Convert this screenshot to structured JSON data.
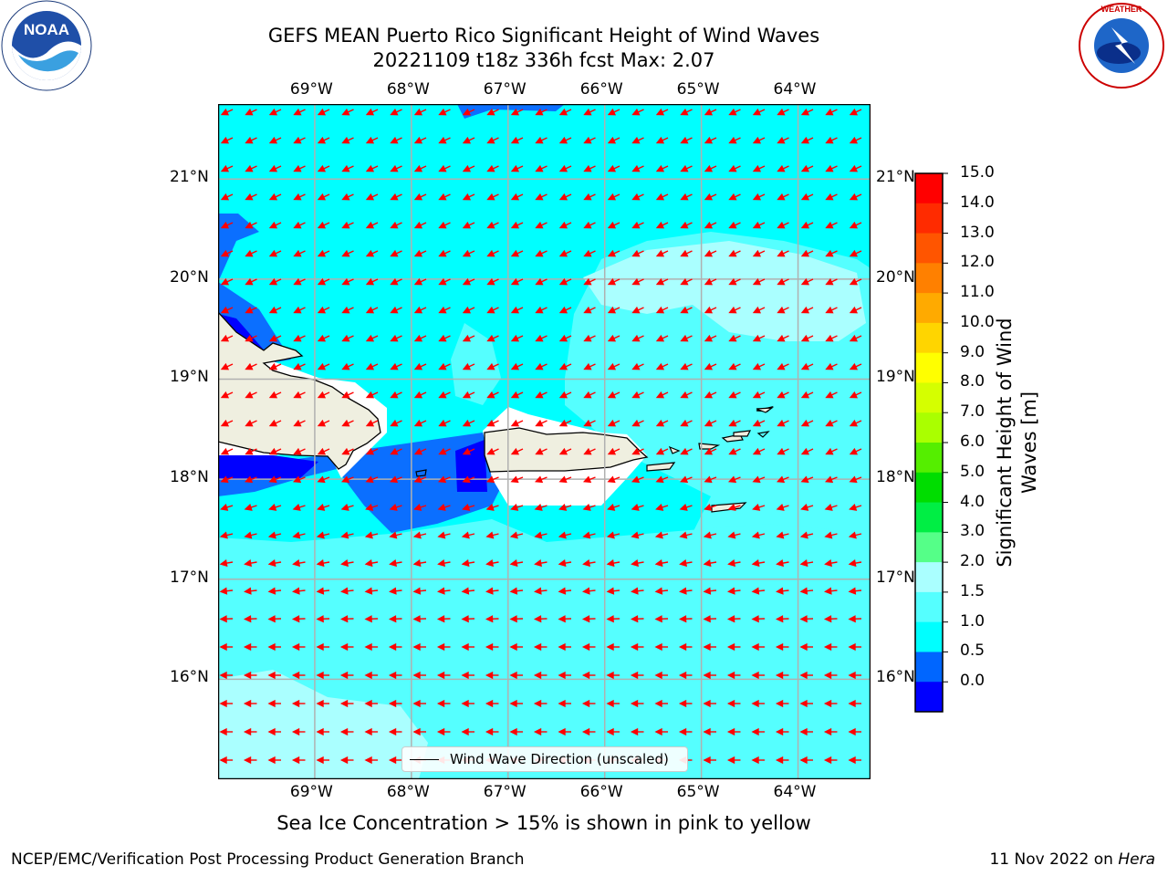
{
  "title": {
    "line1": "GEFS MEAN Puerto Rico Significant Height of Wind Waves",
    "line2": "20221109 t18z 336h fcst   Max: 2.07"
  },
  "axes": {
    "lon_labels": [
      "69°W",
      "68°W",
      "67°W",
      "66°W",
      "65°W",
      "64°W"
    ],
    "lat_labels": [
      "21°N",
      "20°N",
      "19°N",
      "18°N",
      "17°N",
      "16°N"
    ],
    "lon_range": [
      -70,
      -63.25
    ],
    "lat_range": [
      15,
      21.75
    ]
  },
  "legend": {
    "label": "Wind Wave Direction (unscaled)"
  },
  "colorbar": {
    "label_line1": "Significant Height of Wind",
    "label_line2": "Waves [m]",
    "ticks": [
      "15.0",
      "14.0",
      "13.0",
      "12.0",
      "11.0",
      "10.0",
      "9.0",
      "8.0",
      "7.0",
      "6.0",
      "5.0",
      "4.0",
      "3.0",
      "2.0",
      "1.5",
      "1.0",
      "0.5",
      "0.0"
    ],
    "colors": [
      "#ff0000",
      "#ff2b00",
      "#ff5500",
      "#ff8000",
      "#ffaa00",
      "#ffd500",
      "#ffff00",
      "#d5ff00",
      "#aaff00",
      "#55ee00",
      "#00dd00",
      "#00ee44",
      "#55ff88",
      "#aaffff",
      "#55ffff",
      "#00ffff",
      "#0066ff",
      "#0000ff"
    ]
  },
  "note": "Sea Ice Concentration > 15% is shown in pink to yellow",
  "footer": {
    "left": "NCEP/EMC/Verification Post Processing Product Generation Branch",
    "right_date": "11 Nov 2022 on",
    "right_host": "Hera"
  },
  "logos": {
    "noaa": "NOAA",
    "nws": "NATIONAL WEATHER SERVICE"
  },
  "field_colors": {
    "ocean_base": "#00ffff",
    "band_1p5_2": "#55ffff",
    "band_2_3": "#aaffff",
    "band_0p5_1": "#0b6fff",
    "band_0_0p5": "#0000ff",
    "land": "#efefe0",
    "arrow": "#ff0000"
  }
}
